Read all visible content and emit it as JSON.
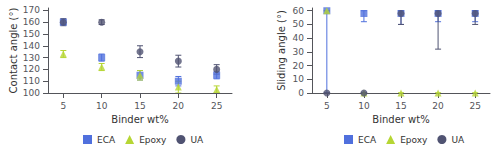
{
  "chart_data": [
    {
      "type": "scatter",
      "xlabel": "Binder wt%",
      "ylabel": "Contact angle (°)",
      "x": [
        5,
        10,
        15,
        20,
        25
      ],
      "xlim": [
        3,
        27
      ],
      "xticks": [
        5,
        10,
        15,
        20,
        25
      ],
      "ylim": [
        100,
        172
      ],
      "yticks": [
        100,
        110,
        120,
        130,
        140,
        150,
        160,
        170
      ],
      "grid": false,
      "legend": "bottom",
      "series": [
        {
          "name": "ECA",
          "marker": "square",
          "values": [
            160,
            130,
            115,
            110,
            115
          ],
          "errors": [
            2,
            3,
            4,
            4,
            3
          ]
        },
        {
          "name": "Epoxy",
          "marker": "triangle",
          "values": [
            133,
            122,
            115,
            105,
            103
          ],
          "errors": [
            3,
            3,
            4,
            5,
            3
          ]
        },
        {
          "name": "UA",
          "marker": "circle",
          "values": [
            160,
            160,
            135,
            127,
            120
          ],
          "errors": [
            3,
            2,
            5,
            5,
            4
          ]
        }
      ]
    },
    {
      "type": "scatter",
      "xlabel": "Binder wt%",
      "ylabel": "Sliding angle (°)",
      "x": [
        5,
        10,
        15,
        20,
        25
      ],
      "xlim": [
        3,
        27
      ],
      "xticks": [
        5,
        10,
        15,
        20,
        25
      ],
      "ylim": [
        0,
        62
      ],
      "yticks": [
        0,
        10,
        20,
        30,
        40,
        50,
        60
      ],
      "grid": false,
      "legend": "bottom",
      "series": [
        {
          "name": "ECA",
          "marker": "square",
          "values": [
            60,
            58,
            58,
            58,
            58
          ],
          "errors_low": [
            60,
            6,
            8,
            6,
            6
          ],
          "errors_high": [
            0,
            2,
            2,
            2,
            2
          ]
        },
        {
          "name": "Epoxy",
          "marker": "triangle",
          "values": [
            60,
            0,
            0,
            0,
            0
          ],
          "errors_low": [
            0,
            0,
            0,
            0,
            0
          ],
          "errors_high": [
            0,
            0,
            0,
            0,
            0
          ]
        },
        {
          "name": "UA",
          "marker": "circle",
          "values": [
            0,
            0,
            58,
            58,
            58
          ],
          "errors_low": [
            0,
            0,
            8,
            26,
            8
          ],
          "errors_high": [
            0,
            0,
            2,
            2,
            2
          ]
        }
      ]
    }
  ]
}
